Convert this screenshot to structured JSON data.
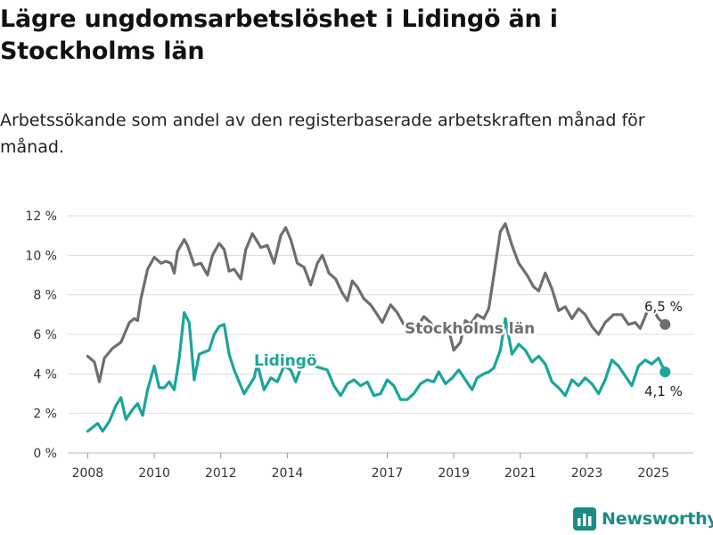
{
  "title": "Lägre ungdomsarbetslöshet i Lidingö än i Stockholms län",
  "subtitle": "Arbetssökande som andel av den registerbaserade arbetskraften månad för månad.",
  "logo_text": "Newsworthy",
  "colors": {
    "stockholm": "#6d6e71",
    "lidingo": "#1aa59a",
    "grid": "#dddddd",
    "logo": "#1a8c84"
  },
  "chart_data": {
    "type": "line",
    "y_tick_labels": [
      "0 %",
      "2 %",
      "4 %",
      "6 %",
      "8 %",
      "10 %",
      "12 %"
    ],
    "y_ticks": [
      0,
      2,
      4,
      6,
      8,
      10,
      12
    ],
    "ylim": [
      0,
      12
    ],
    "x_ticks": [
      2008,
      2010,
      2012,
      2014,
      2017,
      2019,
      2021,
      2023,
      2025
    ],
    "xlim": [
      2007.4,
      2026.2
    ],
    "grid": true,
    "series": [
      {
        "name": "Stockholms län",
        "color": "#6d6e71",
        "end_label": "6,5 %",
        "points": [
          [
            2008.0,
            4.9
          ],
          [
            2008.2,
            4.6
          ],
          [
            2008.35,
            3.6
          ],
          [
            2008.5,
            4.8
          ],
          [
            2008.75,
            5.3
          ],
          [
            2009.0,
            5.6
          ],
          [
            2009.25,
            6.6
          ],
          [
            2009.4,
            6.8
          ],
          [
            2009.5,
            6.7
          ],
          [
            2009.6,
            7.8
          ],
          [
            2009.8,
            9.3
          ],
          [
            2010.0,
            9.9
          ],
          [
            2010.2,
            9.6
          ],
          [
            2010.35,
            9.7
          ],
          [
            2010.5,
            9.6
          ],
          [
            2010.6,
            9.1
          ],
          [
            2010.7,
            10.2
          ],
          [
            2010.9,
            10.8
          ],
          [
            2011.0,
            10.5
          ],
          [
            2011.2,
            9.5
          ],
          [
            2011.4,
            9.6
          ],
          [
            2011.6,
            9.0
          ],
          [
            2011.75,
            10.0
          ],
          [
            2011.95,
            10.6
          ],
          [
            2012.1,
            10.3
          ],
          [
            2012.25,
            9.2
          ],
          [
            2012.4,
            9.3
          ],
          [
            2012.6,
            8.8
          ],
          [
            2012.75,
            10.3
          ],
          [
            2012.95,
            11.1
          ],
          [
            2013.2,
            10.4
          ],
          [
            2013.4,
            10.5
          ],
          [
            2013.6,
            9.6
          ],
          [
            2013.8,
            11.0
          ],
          [
            2013.95,
            11.4
          ],
          [
            2014.1,
            10.8
          ],
          [
            2014.3,
            9.6
          ],
          [
            2014.5,
            9.4
          ],
          [
            2014.7,
            8.5
          ],
          [
            2014.9,
            9.6
          ],
          [
            2015.05,
            10.0
          ],
          [
            2015.25,
            9.1
          ],
          [
            2015.45,
            8.8
          ],
          [
            2015.65,
            8.1
          ],
          [
            2015.8,
            7.7
          ],
          [
            2015.95,
            8.7
          ],
          [
            2016.1,
            8.4
          ],
          [
            2016.3,
            7.8
          ],
          [
            2016.5,
            7.5
          ],
          [
            2016.7,
            7.0
          ],
          [
            2016.85,
            6.6
          ],
          [
            2017.1,
            7.5
          ],
          [
            2017.3,
            7.1
          ],
          [
            2017.5,
            6.5
          ],
          [
            2017.7,
            6.3
          ],
          [
            2017.95,
            6.5
          ],
          [
            2018.1,
            6.9
          ],
          [
            2018.3,
            6.6
          ],
          [
            2018.5,
            6.0
          ],
          [
            2018.7,
            6.5
          ],
          [
            2018.9,
            5.9
          ],
          [
            2019.0,
            5.2
          ],
          [
            2019.2,
            5.6
          ],
          [
            2019.35,
            6.7
          ],
          [
            2019.5,
            6.5
          ],
          [
            2019.7,
            7.0
          ],
          [
            2019.9,
            6.8
          ],
          [
            2020.05,
            7.3
          ],
          [
            2020.25,
            9.5
          ],
          [
            2020.4,
            11.2
          ],
          [
            2020.55,
            11.6
          ],
          [
            2020.75,
            10.5
          ],
          [
            2020.95,
            9.6
          ],
          [
            2021.2,
            9.0
          ],
          [
            2021.4,
            8.4
          ],
          [
            2021.55,
            8.2
          ],
          [
            2021.75,
            9.1
          ],
          [
            2021.95,
            8.3
          ],
          [
            2022.15,
            7.2
          ],
          [
            2022.35,
            7.4
          ],
          [
            2022.55,
            6.8
          ],
          [
            2022.75,
            7.3
          ],
          [
            2022.95,
            7.0
          ],
          [
            2023.15,
            6.4
          ],
          [
            2023.35,
            6.0
          ],
          [
            2023.55,
            6.6
          ],
          [
            2023.8,
            7.0
          ],
          [
            2024.05,
            7.0
          ],
          [
            2024.25,
            6.5
          ],
          [
            2024.45,
            6.6
          ],
          [
            2024.6,
            6.3
          ],
          [
            2024.8,
            7.1
          ],
          [
            2024.95,
            7.4
          ],
          [
            2025.15,
            6.8
          ],
          [
            2025.35,
            6.5
          ]
        ]
      },
      {
        "name": "Lidingö",
        "color": "#1aa59a",
        "end_label": "4,1 %",
        "points": [
          [
            2008.0,
            1.1
          ],
          [
            2008.15,
            1.3
          ],
          [
            2008.3,
            1.5
          ],
          [
            2008.45,
            1.1
          ],
          [
            2008.65,
            1.6
          ],
          [
            2008.85,
            2.4
          ],
          [
            2009.0,
            2.8
          ],
          [
            2009.15,
            1.7
          ],
          [
            2009.35,
            2.2
          ],
          [
            2009.5,
            2.5
          ],
          [
            2009.65,
            1.9
          ],
          [
            2009.8,
            3.2
          ],
          [
            2010.0,
            4.4
          ],
          [
            2010.15,
            3.3
          ],
          [
            2010.3,
            3.3
          ],
          [
            2010.45,
            3.6
          ],
          [
            2010.6,
            3.2
          ],
          [
            2010.75,
            4.8
          ],
          [
            2010.9,
            7.1
          ],
          [
            2011.05,
            6.6
          ],
          [
            2011.2,
            3.7
          ],
          [
            2011.35,
            5.0
          ],
          [
            2011.5,
            5.1
          ],
          [
            2011.65,
            5.2
          ],
          [
            2011.8,
            6.0
          ],
          [
            2011.95,
            6.4
          ],
          [
            2012.1,
            6.5
          ],
          [
            2012.25,
            5.0
          ],
          [
            2012.4,
            4.2
          ],
          [
            2012.55,
            3.6
          ],
          [
            2012.7,
            3.0
          ],
          [
            2012.85,
            3.4
          ],
          [
            2013.0,
            3.8
          ],
          [
            2013.1,
            4.5
          ],
          [
            2013.3,
            3.2
          ],
          [
            2013.5,
            3.8
          ],
          [
            2013.7,
            3.6
          ],
          [
            2013.9,
            4.4
          ],
          [
            2014.1,
            4.2
          ],
          [
            2014.25,
            3.6
          ],
          [
            2014.4,
            4.3
          ],
          [
            2014.6,
            4.5
          ],
          [
            2014.8,
            4.4
          ],
          [
            2015.0,
            4.3
          ],
          [
            2015.2,
            4.2
          ],
          [
            2015.4,
            3.4
          ],
          [
            2015.6,
            2.9
          ],
          [
            2015.8,
            3.5
          ],
          [
            2016.0,
            3.7
          ],
          [
            2016.2,
            3.4
          ],
          [
            2016.4,
            3.6
          ],
          [
            2016.6,
            2.9
          ],
          [
            2016.8,
            3.0
          ],
          [
            2017.0,
            3.7
          ],
          [
            2017.2,
            3.4
          ],
          [
            2017.4,
            2.7
          ],
          [
            2017.6,
            2.7
          ],
          [
            2017.8,
            3.0
          ],
          [
            2018.0,
            3.5
          ],
          [
            2018.2,
            3.7
          ],
          [
            2018.4,
            3.6
          ],
          [
            2018.55,
            4.1
          ],
          [
            2018.75,
            3.5
          ],
          [
            2018.95,
            3.8
          ],
          [
            2019.15,
            4.2
          ],
          [
            2019.35,
            3.7
          ],
          [
            2019.55,
            3.2
          ],
          [
            2019.7,
            3.8
          ],
          [
            2019.9,
            4.0
          ],
          [
            2020.05,
            4.1
          ],
          [
            2020.2,
            4.3
          ],
          [
            2020.4,
            5.2
          ],
          [
            2020.55,
            6.8
          ],
          [
            2020.75,
            5.0
          ],
          [
            2020.95,
            5.5
          ],
          [
            2021.15,
            5.2
          ],
          [
            2021.35,
            4.6
          ],
          [
            2021.55,
            4.9
          ],
          [
            2021.75,
            4.5
          ],
          [
            2021.95,
            3.6
          ],
          [
            2022.15,
            3.3
          ],
          [
            2022.35,
            2.9
          ],
          [
            2022.55,
            3.7
          ],
          [
            2022.75,
            3.4
          ],
          [
            2022.95,
            3.8
          ],
          [
            2023.15,
            3.5
          ],
          [
            2023.35,
            3.0
          ],
          [
            2023.55,
            3.7
          ],
          [
            2023.75,
            4.7
          ],
          [
            2023.95,
            4.4
          ],
          [
            2024.15,
            3.9
          ],
          [
            2024.35,
            3.4
          ],
          [
            2024.55,
            4.4
          ],
          [
            2024.75,
            4.7
          ],
          [
            2024.95,
            4.5
          ],
          [
            2025.15,
            4.8
          ],
          [
            2025.35,
            4.1
          ]
        ]
      }
    ]
  }
}
